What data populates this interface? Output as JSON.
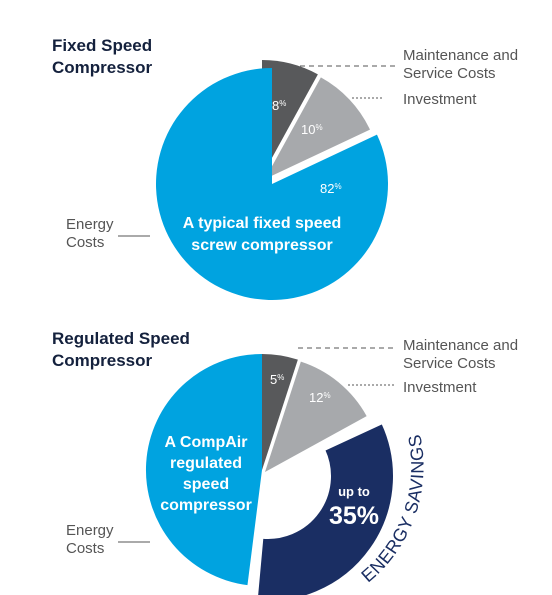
{
  "chart_data": [
    {
      "type": "pie",
      "title_lines": [
        "Fixed Speed",
        "Compressor"
      ],
      "categories": [
        "Maintenance and Service Costs",
        "Investment",
        "Energy Costs"
      ],
      "values": [
        8,
        10,
        82
      ],
      "value_labels": [
        "8",
        "10",
        "82"
      ],
      "unit": "%",
      "legend_lines": [
        [
          "Maintenance and",
          "Service Costs"
        ],
        [
          "Investment"
        ],
        [
          "Energy",
          "Costs"
        ]
      ],
      "inner_text": [
        "A typical fixed speed",
        "screw compressor"
      ],
      "colors": [
        "#58595b",
        "#a7a9ac",
        "#00a3e0"
      ]
    },
    {
      "type": "pie",
      "title_lines": [
        "Regulated Speed",
        "Compressor"
      ],
      "categories": [
        "Maintenance and Service Costs",
        "Investment",
        "Energy Costs"
      ],
      "values": [
        5,
        12,
        48
      ],
      "value_labels": [
        "5",
        "12",
        ""
      ],
      "unit": "%",
      "legend_lines": [
        [
          "Maintenance and",
          "Service Costs"
        ],
        [
          "Investment"
        ],
        [
          "Energy",
          "Costs"
        ]
      ],
      "inner_text": [
        "A CompAir",
        "regulated",
        "speed",
        "compressor"
      ],
      "colors": [
        "#58595b",
        "#a7a9ac",
        "#00a3e0"
      ],
      "savings": {
        "value": 35,
        "small_text": "up to",
        "big_text": "35%",
        "arc_text": "ENERGY SAVINGS",
        "color": "#1a2e63"
      }
    }
  ]
}
